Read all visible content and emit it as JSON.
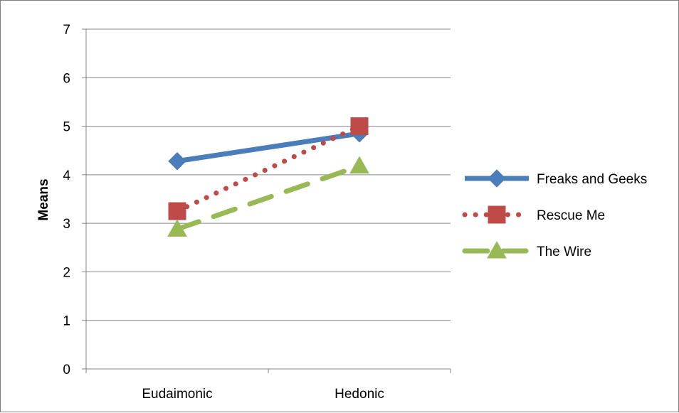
{
  "chart_data": {
    "type": "line",
    "categories": [
      "Eudaimonic",
      "Hedonic"
    ],
    "series": [
      {
        "name": "Freaks and Geeks",
        "values": [
          4.28,
          4.85
        ],
        "color": "#4a7ebb",
        "marker": "diamond",
        "line_style": "solid"
      },
      {
        "name": "Rescue Me",
        "values": [
          3.25,
          5.0
        ],
        "color": "#be4b48",
        "marker": "square",
        "line_style": "dotted"
      },
      {
        "name": "The Wire",
        "values": [
          2.88,
          4.18
        ],
        "color": "#98b954",
        "marker": "triangle",
        "line_style": "dashed"
      }
    ],
    "title": "",
    "xlabel": "",
    "ylabel": "Means",
    "ylim": [
      0,
      7
    ],
    "yticks": [
      "0",
      "1",
      "2",
      "3",
      "4",
      "5",
      "6",
      "7"
    ],
    "grid": true,
    "legend_position": "right"
  }
}
